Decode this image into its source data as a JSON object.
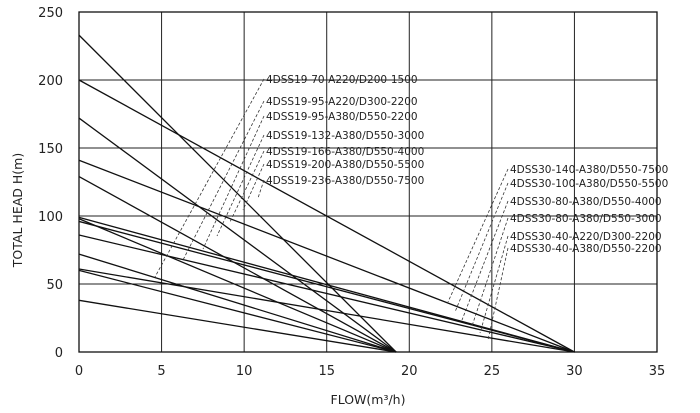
{
  "chart_data": {
    "type": "line",
    "title": "",
    "xlabel": "FLOW(m³/h)",
    "ylabel": "TOTAL HEAD H(m)",
    "xlim": [
      0,
      35
    ],
    "ylim": [
      0,
      250
    ],
    "x_ticks": [
      0,
      5,
      10,
      15,
      20,
      25,
      30,
      35
    ],
    "y_ticks": [
      0,
      50,
      100,
      150,
      200,
      250
    ],
    "grid": true,
    "series": [
      {
        "name": "4DSS19-70-A220/D200-1500",
        "x": [
          0,
          19.2
        ],
        "y": [
          38,
          0
        ]
      },
      {
        "name": "4DSS19-95-A220/D300-2200",
        "x": [
          0,
          19.2
        ],
        "y": [
          60,
          0
        ]
      },
      {
        "name": "4DSS19-95-A380/D550-2200",
        "x": [
          0,
          19.2
        ],
        "y": [
          72,
          0
        ]
      },
      {
        "name": "4DSS19-132-A380/D550-3000",
        "x": [
          0,
          19.2
        ],
        "y": [
          98,
          0
        ]
      },
      {
        "name": "4DSS19-166-A380/D550-4000",
        "x": [
          0,
          19.2
        ],
        "y": [
          129,
          0
        ]
      },
      {
        "name": "4DSS19-200-A380/D550-5500",
        "x": [
          0,
          19.2
        ],
        "y": [
          172,
          0
        ]
      },
      {
        "name": "4DSS19-236-A380/D550-7500",
        "x": [
          0,
          19.2
        ],
        "y": [
          233,
          0
        ]
      },
      {
        "name": "4DSS30-140-A380/D550-7500",
        "x": [
          0,
          30
        ],
        "y": [
          200,
          0
        ]
      },
      {
        "name": "4DSS30-100-A380/D550-5500",
        "x": [
          0,
          30
        ],
        "y": [
          141,
          0
        ]
      },
      {
        "name": "4DSS30-80-A380/D550-4000",
        "x": [
          0,
          30
        ],
        "y": [
          99,
          0
        ]
      },
      {
        "name": "4DSS30-80-A380/D550-3000",
        "x": [
          0,
          30
        ],
        "y": [
          96,
          0
        ]
      },
      {
        "name": "4DSS30-40-A220/D300-2200",
        "x": [
          0,
          30
        ],
        "y": [
          86,
          0
        ]
      },
      {
        "name": "4DSS30-40-A380/D550-2200",
        "x": [
          0,
          30
        ],
        "y": [
          61,
          0
        ]
      }
    ],
    "annotations": {
      "group_19": [
        "4DSS19-70-A220/D200-1500",
        "4DSS19-95-A220/D300-2200",
        "4DSS19-95-A380/D550-2200",
        "4DSS19-132-A380/D550-3000",
        "4DSS19-166-A380/D550-4000",
        "4DSS19-200-A380/D550-5500",
        "4DSS19-236-A380/D550-7500"
      ],
      "group_30": [
        "4DSS30-140-A380/D550-7500",
        "4DSS30-100-A380/D550-5500",
        "4DSS30-80-A380/D550-4000",
        "4DSS30-80-A380/D550-3000",
        "4DSS30-40-A220/D300-2200",
        "4DSS30-40-A380/D550-2200"
      ]
    }
  }
}
